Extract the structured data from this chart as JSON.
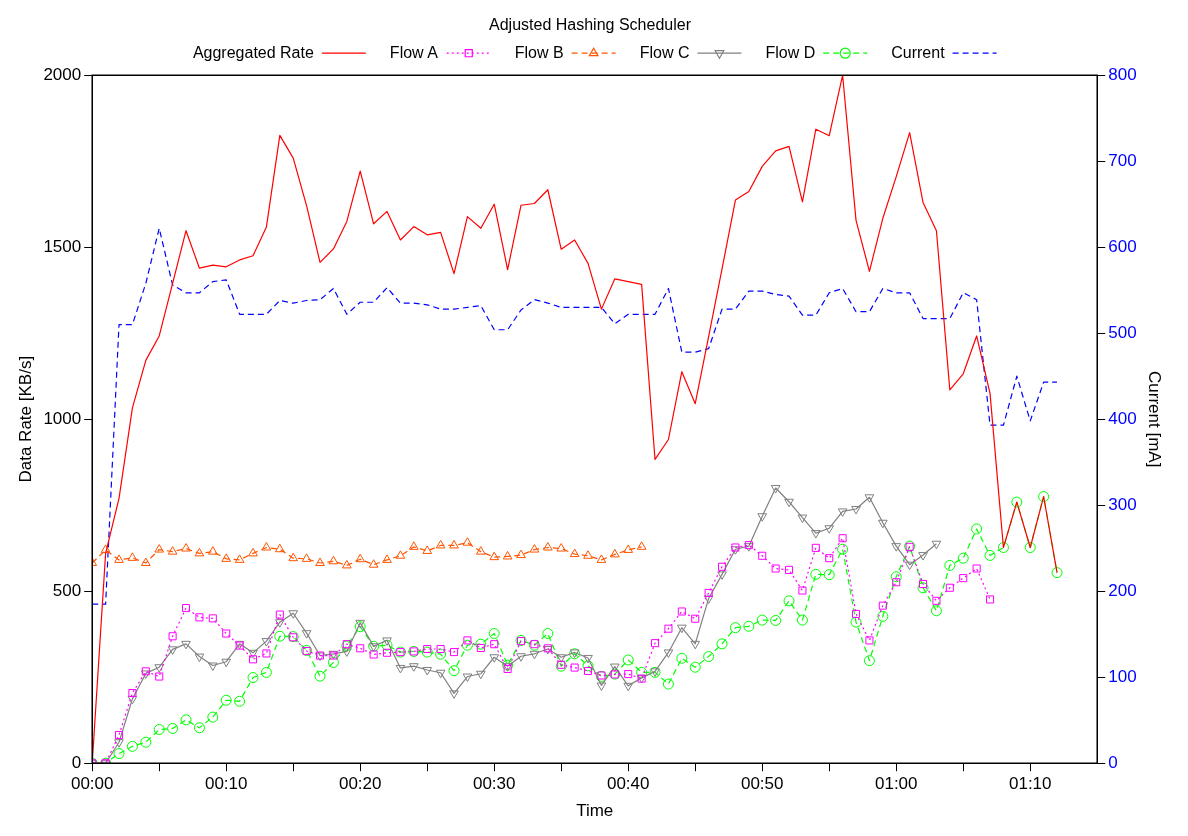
{
  "chart_data": {
    "type": "line",
    "title": "Adjusted Hashing Scheduler",
    "xlabel": "Time",
    "ylabel": "Data Rate [KB/s]",
    "y2label": "Current [mA]",
    "x": [
      0,
      1,
      2,
      3,
      4,
      5,
      6,
      7,
      8,
      9,
      10,
      11,
      12,
      13,
      14,
      15,
      16,
      17,
      18,
      19,
      20,
      21,
      22,
      23,
      24,
      25,
      26,
      27,
      28,
      29,
      30,
      31,
      32,
      33,
      34,
      35,
      36,
      37,
      38,
      39,
      40,
      41,
      42,
      43,
      44,
      45,
      46,
      47,
      48,
      49,
      50,
      51,
      52,
      53,
      54,
      55,
      56,
      57,
      58,
      59,
      60,
      61,
      62,
      63,
      64,
      65,
      66,
      67,
      68,
      69,
      70,
      71,
      72
    ],
    "xlim": [
      0,
      75
    ],
    "xticks": [
      {
        "value": 0,
        "label": "00:00"
      },
      {
        "value": 5,
        "label": null
      },
      {
        "value": 10,
        "label": "00:10"
      },
      {
        "value": 15,
        "label": null
      },
      {
        "value": 20,
        "label": "00:20"
      },
      {
        "value": 25,
        "label": null
      },
      {
        "value": 30,
        "label": "00:30"
      },
      {
        "value": 35,
        "label": null
      },
      {
        "value": 40,
        "label": "00:40"
      },
      {
        "value": 45,
        "label": null
      },
      {
        "value": 50,
        "label": "00:50"
      },
      {
        "value": 55,
        "label": null
      },
      {
        "value": 60,
        "label": "01:00"
      },
      {
        "value": 65,
        "label": null
      },
      {
        "value": 70,
        "label": "01:10"
      }
    ],
    "ylim": [
      0,
      2000
    ],
    "yticks": [
      0,
      500,
      1000,
      1500,
      2000
    ],
    "y2lim": [
      0,
      800
    ],
    "y2ticks": [
      0,
      100,
      200,
      300,
      400,
      500,
      600,
      700,
      800
    ],
    "grid": false,
    "legend": "top",
    "series": [
      {
        "name": "Aggregated Rate",
        "color": "#ff0000",
        "marker": "none",
        "line_style": "solid",
        "values": [
          0,
          610,
          770,
          1033,
          1171,
          1242,
          1395,
          1548,
          1439,
          1448,
          1443,
          1463,
          1475,
          1559,
          1825,
          1759,
          1620,
          1456,
          1495,
          1575,
          1721,
          1568,
          1604,
          1521,
          1560,
          1536,
          1543,
          1423,
          1589,
          1555,
          1625,
          1435,
          1622,
          1627,
          1667,
          1494,
          1521,
          1453,
          1320,
          1408,
          1400,
          1392,
          883,
          941,
          1138,
          1045,
          1240,
          1437,
          1637,
          1662,
          1735,
          1780,
          1793,
          1632,
          1843,
          1824,
          2000,
          1578,
          1430,
          1584,
          1705,
          1833,
          1630,
          1548,
          1085,
          1132,
          1242,
          1075,
          627,
          759,
          627,
          775,
          554
        ]
      },
      {
        "name": "Flow A",
        "color": "#ff00ff",
        "marker": "square",
        "line_style": "dotted",
        "x": [
          0,
          1,
          2,
          3,
          4,
          5,
          6,
          7,
          8,
          9,
          10,
          11,
          12,
          13,
          14,
          15,
          16,
          17,
          18,
          19,
          20,
          21,
          22,
          23,
          24,
          25,
          26,
          27,
          28,
          29,
          30,
          31,
          32,
          33,
          34,
          35,
          36,
          37,
          38,
          39,
          40,
          41,
          42,
          43,
          44,
          45,
          46,
          47,
          48,
          49,
          50,
          51,
          52,
          53,
          54,
          55,
          56,
          57,
          58,
          59,
          60,
          61,
          62,
          63,
          64,
          65,
          66,
          67
        ],
        "values": [
          0,
          0,
          82,
          204,
          267,
          252,
          369,
          451,
          424,
          421,
          377,
          342,
          302,
          319,
          432,
          366,
          326,
          313,
          313,
          346,
          334,
          316,
          321,
          323,
          325,
          332,
          332,
          323,
          357,
          335,
          346,
          274,
          355,
          346,
          334,
          286,
          278,
          268,
          255,
          258,
          259,
          246,
          349,
          391,
          441,
          420,
          495,
          571,
          627,
          634,
          603,
          566,
          562,
          502,
          626,
          596,
          654,
          434,
          357,
          458,
          526,
          629,
          521,
          472,
          510,
          538,
          566,
          476
        ]
      },
      {
        "name": "Flow B",
        "color": "#ff5500",
        "marker": "triangle",
        "line_style": "dashed",
        "x": [
          0,
          1,
          2,
          3,
          4,
          5,
          6,
          7,
          8,
          9,
          10,
          11,
          12,
          13,
          14,
          15,
          16,
          17,
          18,
          19,
          20,
          21,
          22,
          23,
          24,
          25,
          26,
          27,
          28,
          29,
          30,
          31,
          32,
          33,
          34,
          35,
          36,
          37,
          38,
          39,
          40,
          41
        ],
        "values": [
          582,
          620,
          591,
          597,
          582,
          621,
          615,
          624,
          610,
          615,
          594,
          591,
          610,
          627,
          622,
          596,
          594,
          582,
          587,
          575,
          593,
          577,
          591,
          603,
          629,
          617,
          633,
          633,
          641,
          615,
          599,
          601,
          605,
          621,
          627,
          624,
          608,
          603,
          591,
          607,
          620,
          629
        ]
      },
      {
        "name": "Flow C",
        "color": "#808080",
        "marker": "triangle-down",
        "line_style": "solid",
        "x": [
          0,
          1,
          2,
          3,
          4,
          5,
          6,
          7,
          8,
          9,
          10,
          11,
          12,
          13,
          14,
          15,
          16,
          17,
          18,
          19,
          20,
          21,
          22,
          23,
          24,
          25,
          26,
          27,
          28,
          29,
          30,
          31,
          32,
          33,
          34,
          35,
          36,
          37,
          38,
          39,
          40,
          41,
          42,
          43,
          44,
          45,
          46,
          47,
          48,
          49,
          50,
          51,
          52,
          53,
          54,
          55,
          56,
          57,
          58,
          59,
          60,
          61,
          62,
          63
        ],
        "values": [
          0,
          0,
          61,
          187,
          261,
          279,
          331,
          347,
          310,
          284,
          295,
          347,
          321,
          355,
          410,
          436,
          378,
          313,
          318,
          325,
          408,
          340,
          357,
          277,
          282,
          271,
          263,
          203,
          252,
          260,
          308,
          282,
          311,
          318,
          332,
          308,
          322,
          306,
          226,
          281,
          225,
          248,
          267,
          322,
          394,
          347,
          479,
          549,
          622,
          631,
          718,
          800,
          760,
          714,
          669,
          683,
          732,
          739,
          773,
          699,
          631,
          577,
          605,
          638
        ]
      },
      {
        "name": "Flow D",
        "color": "#00ff00",
        "marker": "circle",
        "line_style": "dashed",
        "values": [
          0,
          0,
          28,
          49,
          61,
          98,
          101,
          126,
          103,
          134,
          183,
          180,
          249,
          264,
          369,
          368,
          328,
          253,
          293,
          341,
          397,
          340,
          343,
          323,
          325,
          323,
          317,
          269,
          343,
          346,
          377,
          285,
          357,
          343,
          377,
          282,
          318,
          283,
          252,
          259,
          300,
          264,
          264,
          230,
          305,
          279,
          310,
          347,
          394,
          398,
          416,
          415,
          472,
          416,
          549,
          548,
          622,
          410,
          298,
          427,
          542,
          631,
          510,
          443,
          575,
          596,
          681,
          604,
          627,
          759,
          627,
          775,
          554
        ]
      },
      {
        "name": "Current",
        "color": "#0000ff",
        "marker": "none",
        "line_style": "dashed",
        "axis": "y2",
        "values": [
          185,
          185,
          510,
          510,
          558,
          622,
          556,
          547,
          547,
          560,
          562,
          522,
          522,
          522,
          538,
          535,
          538,
          539,
          552,
          522,
          536,
          536,
          553,
          535,
          535,
          533,
          528,
          528,
          530,
          532,
          504,
          504,
          527,
          539,
          535,
          530,
          530,
          530,
          530,
          511,
          522,
          522,
          522,
          552,
          478,
          478,
          482,
          528,
          528,
          549,
          549,
          545,
          543,
          521,
          521,
          547,
          552,
          525,
          525,
          552,
          547,
          547,
          517,
          517,
          517,
          547,
          539,
          393,
          393,
          450,
          398,
          443,
          443
        ]
      }
    ]
  }
}
